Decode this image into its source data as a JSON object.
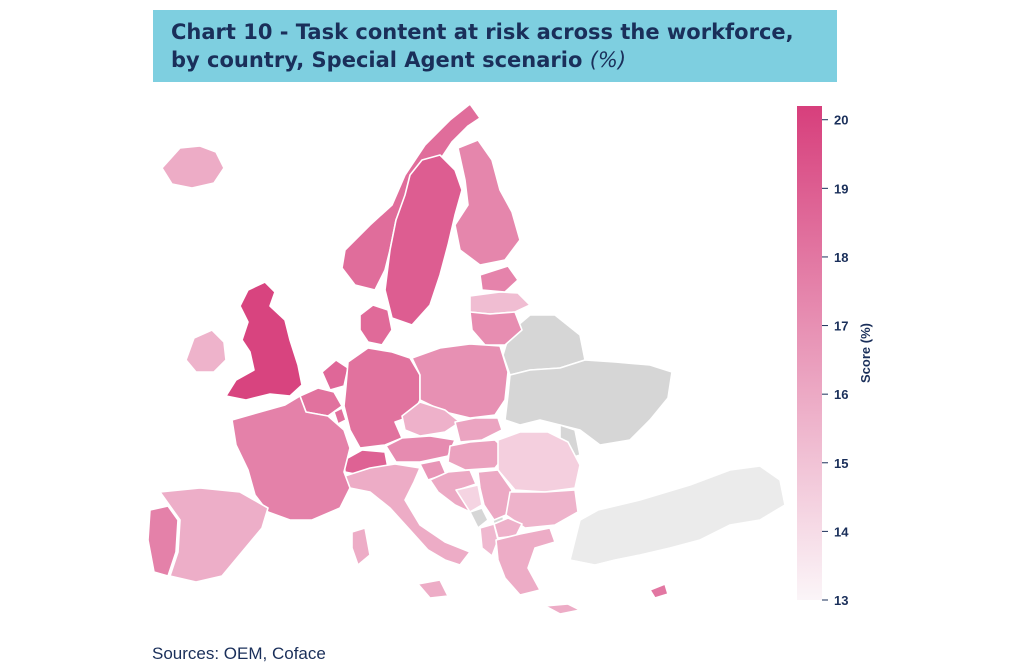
{
  "title": {
    "line1": "Chart 10 - Task content at risk across the workforce,",
    "line2": "by country, Special Agent scenario",
    "unit": "(%)"
  },
  "source": "Sources: OEM, Coface",
  "colors": {
    "title_bg": "#7ecfe0",
    "title_text": "#1a2f5a",
    "scale_low": "#fbf5f8",
    "scale_high": "#d73f7c",
    "no_data": "#d6d6d6",
    "outside": "#ebebeb"
  },
  "chart_data": {
    "type": "choropleth",
    "title": "Chart 10 - Task content at risk across the workforce, by country, Special Agent scenario (%)",
    "colorbar": {
      "label": "Score (%)",
      "min": 13,
      "max": 20.2,
      "ticks": [
        "20",
        "19",
        "18",
        "17",
        "16",
        "15",
        "14",
        "13"
      ]
    },
    "values": {
      "United Kingdom": 20.0,
      "Sweden": 19.0,
      "Norway": 18.4,
      "Denmark": 18.5,
      "Netherlands": 18.6,
      "Belgium": 18.2,
      "Luxembourg": 18.3,
      "Switzerland": 18.8,
      "Germany": 18.2,
      "Finland": 17.4,
      "France": 17.6,
      "Portugal": 17.6,
      "Poland": 17.0,
      "Lithuania": 17.1,
      "Estonia": 17.5,
      "Austria": 17.2,
      "Hungary": 16.3,
      "Slovenia": 16.8,
      "Czechia": 15.7,
      "Slovakia": 16.2,
      "Croatia": 16.0,
      "Iceland": 15.9,
      "Ireland": 15.6,
      "Spain": 15.8,
      "Italy": 15.9,
      "Bulgaria": 15.6,
      "Serbia": 16.0,
      "Greece": 15.9,
      "North Macedonia": 15.7,
      "Albania": 15.4,
      "Cyprus": 18.0,
      "Latvia": 15.2,
      "Romania": 14.5,
      "Bosnia and Herzegovina": 14.3
    },
    "no_data": [
      "Belarus",
      "Ukraine",
      "Moldova",
      "Montenegro",
      "Kosovo"
    ],
    "outside": [
      "Turkey",
      "Russia (Kaliningrad)"
    ]
  }
}
